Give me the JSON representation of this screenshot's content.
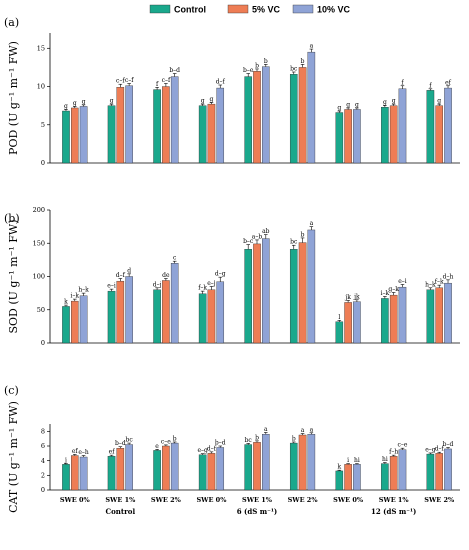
{
  "legend": [
    {
      "name": "Control",
      "color": "#1aa88c"
    },
    {
      "name": "5% VC",
      "color": "#ee7d55"
    },
    {
      "name": "10% VC",
      "color": "#8fa3d6"
    }
  ],
  "colors": {
    "control": "#1aa88c",
    "vc5": "#ee7d55",
    "vc10": "#8fa3d6"
  },
  "x_tick_labels": [
    "SWE 0%",
    "SWE 1%",
    "SWE 2%",
    "SWE 0%",
    "SWE 1%",
    "SWE 2%",
    "SWE 0%",
    "SWE 1%",
    "SWE 2%"
  ],
  "x_group_labels": [
    "Control",
    "6 (dS m⁻¹)",
    "12 (dS m⁻¹)"
  ],
  "chart_data": [
    {
      "type": "bar",
      "panel_label": "(a)",
      "ylabel": "POD (U g⁻¹ m⁻¹ FW)",
      "ylim": [
        0,
        17
      ],
      "yticks": [
        0,
        5,
        10,
        15
      ],
      "categories": [
        "SWE 0%",
        "SWE 1%",
        "SWE 2%",
        "SWE 0%",
        "SWE 1%",
        "SWE 2%",
        "SWE 0%",
        "SWE 1%",
        "SWE 2%"
      ],
      "series": [
        {
          "name": "Control",
          "values": [
            6.8,
            7.5,
            9.6,
            7.5,
            11.3,
            11.6,
            6.6,
            7.3,
            9.5
          ],
          "errors": [
            0.2,
            0.2,
            0.3,
            0.2,
            0.4,
            0.3,
            0.2,
            0.2,
            0.2
          ]
        },
        {
          "name": "5% VC",
          "values": [
            7.2,
            9.9,
            10.0,
            7.7,
            12.0,
            12.5,
            7.0,
            7.5,
            7.5
          ],
          "errors": [
            0.2,
            0.4,
            0.4,
            0.2,
            0.3,
            0.4,
            0.2,
            0.2,
            0.2
          ]
        },
        {
          "name": "10% VC",
          "values": [
            7.4,
            10.1,
            11.3,
            9.8,
            12.6,
            14.5,
            7.0,
            9.7,
            9.8
          ],
          "errors": [
            0.2,
            0.3,
            0.4,
            0.4,
            0.3,
            0.4,
            0.2,
            0.4,
            0.3
          ]
        }
      ],
      "letters": [
        [
          "g",
          "g",
          "g"
        ],
        [
          "g",
          "c–f",
          "c–f"
        ],
        [
          "f",
          "c–f",
          "b–d"
        ],
        [
          "g",
          "g",
          "d–f"
        ],
        [
          "b–e",
          "b",
          "b"
        ],
        [
          "bc",
          "b",
          "a"
        ],
        [
          "g",
          "g",
          "g"
        ],
        [
          "g",
          "g",
          "f"
        ],
        [
          "f",
          "g",
          "ef"
        ]
      ]
    },
    {
      "type": "bar",
      "panel_label": "(b)",
      "ylabel": "SOD (U g⁻¹ m⁻¹ FW)",
      "ylim": [
        0,
        200
      ],
      "yticks": [
        0,
        50,
        100,
        150,
        200
      ],
      "categories": [
        "SWE 0%",
        "SWE 1%",
        "SWE 2%",
        "SWE 0%",
        "SWE 1%",
        "SWE 2%",
        "SWE 0%",
        "SWE 1%",
        "SWE 2%"
      ],
      "series": [
        {
          "name": "Control",
          "values": [
            55,
            78,
            80,
            74,
            141,
            141,
            32,
            67,
            80
          ],
          "errors": [
            2,
            3,
            3,
            4,
            7,
            6,
            2,
            3,
            3
          ]
        },
        {
          "name": "5% VC",
          "values": [
            63,
            93,
            94,
            80,
            149,
            151,
            61,
            72,
            83
          ],
          "errors": [
            3,
            4,
            3,
            5,
            6,
            7,
            3,
            4,
            4
          ]
        },
        {
          "name": "10% VC",
          "values": [
            71,
            100,
            120,
            92,
            157,
            170,
            62,
            84,
            90
          ],
          "errors": [
            4,
            4,
            3,
            7,
            6,
            5,
            3,
            4,
            5
          ]
        }
      ],
      "letters": [
        [
          "k",
          "i–k",
          "h–k"
        ],
        [
          "e–i",
          "d–f",
          "d"
        ],
        [
          "d–j",
          "de",
          "c"
        ],
        [
          "f–k",
          "e–j",
          "d–g"
        ],
        [
          "b–c",
          "a–b",
          "ab"
        ],
        [
          "bc",
          "b",
          "a"
        ],
        [
          "l",
          "jk",
          "jk"
        ],
        [
          "i–k",
          "g–k",
          "e–i"
        ],
        [
          "h–k",
          "f–k",
          "d–h"
        ]
      ]
    },
    {
      "type": "bar",
      "panel_label": "(c)",
      "ylabel": "CAT (U g⁻¹ m⁻¹ FW)",
      "ylim": [
        0,
        9
      ],
      "yticks": [
        0,
        2,
        4,
        6,
        8
      ],
      "categories": [
        "SWE 0%",
        "SWE 1%",
        "SWE 2%",
        "SWE 0%",
        "SWE 1%",
        "SWE 2%",
        "SWE 0%",
        "SWE 1%",
        "SWE 2%"
      ],
      "series": [
        {
          "name": "Control",
          "values": [
            3.5,
            4.6,
            5.4,
            4.8,
            6.2,
            6.4,
            2.6,
            3.6,
            4.9
          ],
          "errors": [
            0.1,
            0.15,
            0.15,
            0.15,
            0.15,
            0.15,
            0.1,
            0.15,
            0.15
          ]
        },
        {
          "name": "5% VC",
          "values": [
            4.7,
            5.7,
            6.0,
            5.0,
            6.5,
            7.5,
            3.5,
            4.6,
            5.0
          ],
          "errors": [
            0.15,
            0.2,
            0.15,
            0.2,
            0.2,
            0.2,
            0.1,
            0.15,
            0.15
          ]
        },
        {
          "name": "10% VC",
          "values": [
            4.5,
            6.2,
            6.4,
            5.8,
            7.6,
            7.6,
            3.5,
            5.5,
            5.6
          ],
          "errors": [
            0.2,
            0.2,
            0.15,
            0.2,
            0.25,
            0.2,
            0.1,
            0.2,
            0.2
          ]
        }
      ],
      "letters": [
        [
          "j",
          "ef",
          "e–h"
        ],
        [
          "ef",
          "b–d",
          "bc"
        ],
        [
          "e",
          "c–e",
          "b"
        ],
        [
          "e–g",
          "d–f",
          "b–d"
        ],
        [
          "bc",
          "b",
          "a"
        ],
        [
          "b",
          "a",
          "a"
        ],
        [
          "k",
          "i",
          "hi"
        ],
        [
          "hi",
          "f–h",
          "c–e"
        ],
        [
          "e–g",
          "d–f",
          "b–d"
        ]
      ]
    }
  ]
}
